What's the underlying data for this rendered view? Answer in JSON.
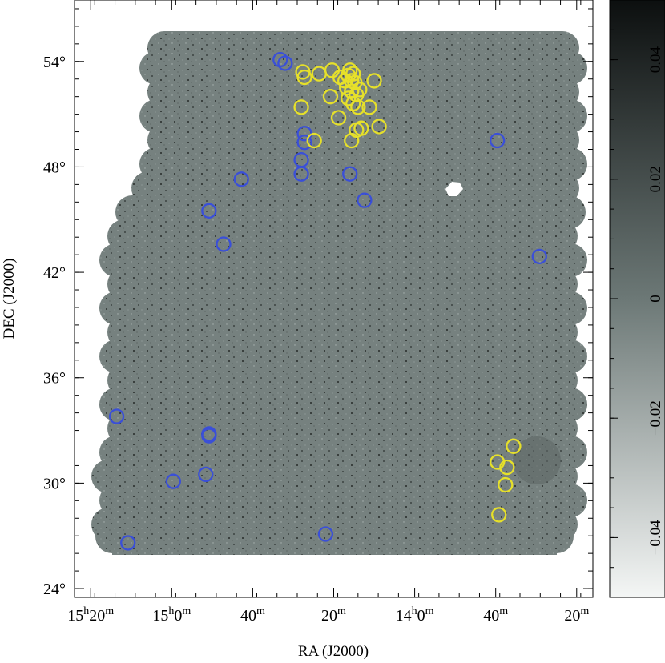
{
  "chart_data": {
    "type": "scatter",
    "xlabel": "RA (J2000)",
    "ylabel": "DEC (J2000)",
    "x_ticks": [
      {
        "value": 230,
        "h": "15",
        "m": "20",
        "hasH": true
      },
      {
        "value": 225,
        "h": "15",
        "m": "0",
        "hasH": true
      },
      {
        "value": 220,
        "m": "40"
      },
      {
        "value": 215,
        "m": "20"
      },
      {
        "value": 210,
        "h": "14",
        "m": "0",
        "hasH": true
      },
      {
        "value": 205,
        "m": "40"
      },
      {
        "value": 200,
        "m": "20"
      }
    ],
    "xlim": [
      231,
      199
    ],
    "y_ticks": [
      "54°",
      "48°",
      "42°",
      "36°",
      "30°",
      "24°"
    ],
    "y_tick_values": [
      54,
      48,
      42,
      36,
      30,
      24
    ],
    "ylim": [
      23.5,
      57.5
    ],
    "colorbar": {
      "tick_labels": [
        "0.04",
        "0.02",
        "0",
        "−0.02",
        "−0.04"
      ],
      "tick_values": [
        0.04,
        0.02,
        0,
        -0.02,
        -0.04
      ],
      "range": [
        -0.05,
        0.05
      ]
    },
    "series": [
      {
        "color": "#3a4fd8",
        "points": [
          [
            218.3,
            54.1
          ],
          [
            218.0,
            53.9
          ],
          [
            216.8,
            49.9
          ],
          [
            216.8,
            49.4
          ],
          [
            217.0,
            48.4
          ],
          [
            217.0,
            47.6
          ],
          [
            214.0,
            47.6
          ],
          [
            213.1,
            46.1
          ],
          [
            220.7,
            47.3
          ],
          [
            222.7,
            45.5
          ],
          [
            221.8,
            43.6
          ],
          [
            204.9,
            49.5
          ],
          [
            202.3,
            42.9
          ],
          [
            228.4,
            33.8
          ],
          [
            222.7,
            32.7
          ],
          [
            222.7,
            32.8
          ],
          [
            224.9,
            30.1
          ],
          [
            222.9,
            30.5
          ],
          [
            227.7,
            26.6
          ],
          [
            215.5,
            27.1
          ]
        ]
      },
      {
        "color": "#e6e02a",
        "points": [
          [
            216.9,
            53.4
          ],
          [
            216.8,
            53.1
          ],
          [
            215.9,
            53.3
          ],
          [
            215.1,
            53.5
          ],
          [
            214.6,
            53.1
          ],
          [
            214.3,
            52.9
          ],
          [
            214.1,
            53.2
          ],
          [
            213.9,
            52.9
          ],
          [
            214.2,
            52.5
          ],
          [
            213.8,
            53.3
          ],
          [
            214.0,
            53.5
          ],
          [
            213.7,
            52.8
          ],
          [
            213.9,
            52.3
          ],
          [
            213.6,
            52.1
          ],
          [
            213.4,
            52.4
          ],
          [
            214.1,
            51.9
          ],
          [
            213.8,
            51.6
          ],
          [
            213.5,
            51.4
          ],
          [
            212.5,
            52.9
          ],
          [
            215.2,
            52.0
          ],
          [
            212.8,
            51.4
          ],
          [
            217.0,
            51.4
          ],
          [
            214.7,
            50.8
          ],
          [
            213.3,
            50.2
          ],
          [
            213.6,
            50.1
          ],
          [
            212.2,
            50.3
          ],
          [
            216.2,
            49.5
          ],
          [
            213.9,
            49.5
          ],
          [
            203.9,
            32.1
          ],
          [
            204.9,
            31.2
          ],
          [
            204.3,
            30.9
          ],
          [
            204.4,
            29.9
          ],
          [
            204.8,
            28.2
          ]
        ]
      }
    ]
  }
}
